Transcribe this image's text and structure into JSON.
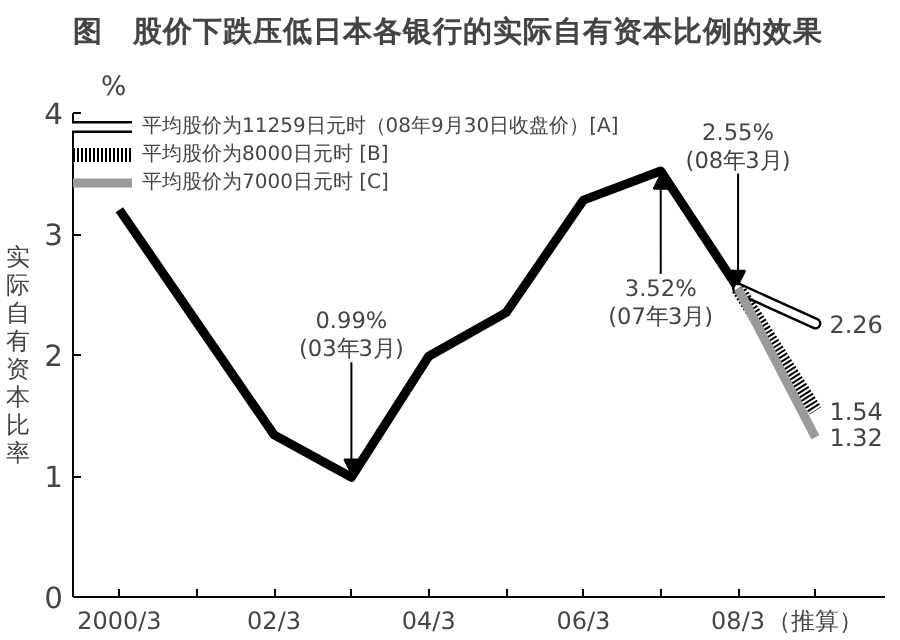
{
  "chart_data": {
    "type": "line",
    "title": "图　股价下跌压低日本各银行的实际自有资本比例的效果",
    "ylabel": "实际自有资本比率",
    "categories": [
      "2000/3",
      null,
      "02/3",
      null,
      "04/3",
      null,
      "06/3",
      null,
      "08/3",
      "（推算）"
    ],
    "series": [
      {
        "color": "#000000",
        "values": [
          3.2,
          2.27,
          1.34,
          0.99,
          1.99,
          2.35,
          3.28,
          3.52,
          2.55,
          null
        ],
        "line_style": "solid"
      },
      {
        "name": "平均股价为11259日元时（08年9月30日收盘价）[A]",
        "color": "#ffffff",
        "values": [
          null,
          null,
          null,
          null,
          null,
          null,
          null,
          null,
          2.55,
          2.26
        ],
        "value_labels": [
          null,
          null,
          null,
          null,
          null,
          null,
          null,
          null,
          null,
          "2.26"
        ],
        "line_style": "solid"
      },
      {
        "name": "平均股价为8000日元时 [B]",
        "color": "#000000",
        "values": [
          null,
          null,
          null,
          null,
          null,
          null,
          null,
          null,
          2.55,
          1.54
        ],
        "value_labels": [
          null,
          null,
          null,
          null,
          null,
          null,
          null,
          null,
          null,
          "1.54"
        ],
        "line_style": "dotted"
      },
      {
        "name": "平均股价为7000日元时 [C]",
        "color": "#9a9a9a",
        "values": [
          null,
          null,
          null,
          null,
          null,
          null,
          null,
          null,
          2.55,
          1.32
        ],
        "value_labels": [
          null,
          null,
          null,
          null,
          null,
          null,
          null,
          null,
          null,
          "1.32"
        ],
        "line_style": "solid"
      }
    ],
    "ylim": [
      0,
      4
    ],
    "yticks": [
      0,
      1,
      2,
      3,
      4
    ],
    "annotations": [
      "%",
      {
        "text": "0.99%\n(03年3月)",
        "y": 0.99
      },
      {
        "text": "3.52%\n(07年3月)",
        "y": 3.52
      },
      {
        "text": "2.55%\n(08年3月)",
        "x": "08/3",
        "y": 2.55
      }
    ],
    "grid": false,
    "legend": "top"
  }
}
